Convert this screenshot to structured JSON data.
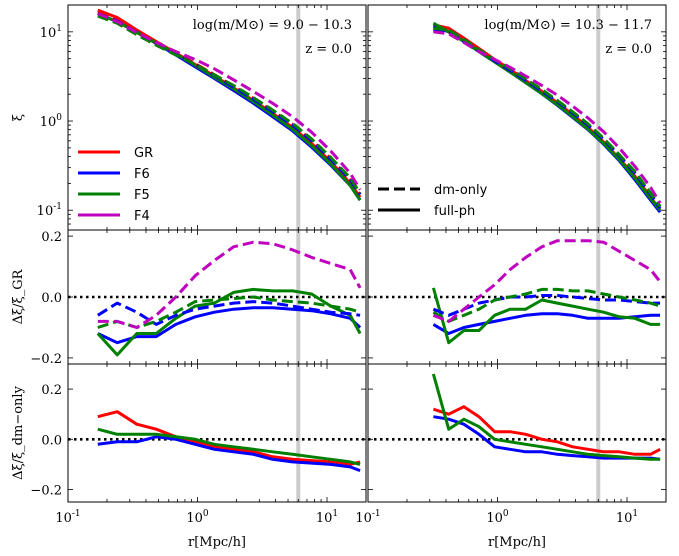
{
  "chart_data": {
    "type": "line",
    "x_unit_label": "r[Mpc/h]",
    "x_ticks": [
      {
        "v": 0.1,
        "label": "10^-1"
      },
      {
        "v": 1,
        "label": "10^0"
      },
      {
        "v": 10,
        "label": "10^1"
      }
    ],
    "xlim": [
      0.1,
      20
    ],
    "x_scale": "log",
    "vline_x": 6.0,
    "colors": {
      "GR": "#ff0000",
      "F6": "#0000ff",
      "F5": "#008000",
      "F4": "#bf00bf",
      "vline": "#cccccc",
      "zero": "#000000"
    },
    "legend_models": [
      "GR",
      "F6",
      "F5",
      "F4"
    ],
    "legend_styles": [
      {
        "label": "dm-only",
        "dash": true
      },
      {
        "label": "full-ph",
        "dash": false
      }
    ],
    "rows": [
      {
        "ylabel": "ξ",
        "y_scale": "log",
        "ylim": [
          0.06,
          20
        ],
        "y_ticks": [
          {
            "v": 0.1,
            "label": "10^-1"
          },
          {
            "v": 1,
            "label": "10^0"
          },
          {
            "v": 10,
            "label": "10^1"
          }
        ]
      },
      {
        "ylabel": "Δξ/ξ_GR",
        "y_scale": "linear",
        "ylim": [
          -0.22,
          0.22
        ],
        "y_ticks": [
          {
            "v": -0.2,
            "label": "−0.2"
          },
          {
            "v": 0.0,
            "label": "0.0"
          },
          {
            "v": 0.2,
            "label": "0.2"
          }
        ],
        "zero_line": true
      },
      {
        "ylabel": "Δξ/ξ_dm−only",
        "y_scale": "linear",
        "ylim": [
          -0.25,
          0.3
        ],
        "y_ticks": [
          {
            "v": -0.2,
            "label": "−0.2"
          },
          {
            "v": 0.0,
            "label": "0.0"
          },
          {
            "v": 0.2,
            "label": "0.2"
          }
        ],
        "zero_line": true
      }
    ],
    "columns": [
      {
        "annotation_mass": "log(m/M⊙) = 9.0 − 10.3",
        "annotation_z": "z = 0.0",
        "x": [
          0.17,
          0.24,
          0.34,
          0.48,
          0.68,
          0.96,
          1.35,
          1.9,
          2.7,
          3.8,
          5.4,
          7.6,
          10.7,
          15.1,
          18
        ],
        "panels": [
          [
            {
              "model": "GR",
              "dash": false,
              "y": [
                17.5,
                14.5,
                10.5,
                7.8,
                5.8,
                4.3,
                3.2,
                2.35,
                1.7,
                1.22,
                0.85,
                0.56,
                0.35,
                0.2,
                0.14
              ]
            },
            {
              "model": "F6",
              "dash": false,
              "y": [
                16,
                13,
                9.9,
                7.4,
                5.5,
                4.05,
                3.0,
                2.2,
                1.58,
                1.12,
                0.78,
                0.51,
                0.32,
                0.19,
                0.13
              ]
            },
            {
              "model": "F5",
              "dash": false,
              "y": [
                16,
                13,
                9.8,
                7.5,
                5.7,
                4.2,
                3.1,
                2.3,
                1.65,
                1.17,
                0.81,
                0.53,
                0.33,
                0.19,
                0.13
              ]
            },
            {
              "model": "GR",
              "dash": true,
              "y": [
                16.5,
                13.5,
                10,
                7.6,
                5.8,
                4.4,
                3.3,
                2.45,
                1.8,
                1.3,
                0.92,
                0.61,
                0.38,
                0.22,
                0.15
              ]
            },
            {
              "model": "F6",
              "dash": true,
              "y": [
                16,
                13.2,
                9.8,
                7.4,
                5.6,
                4.3,
                3.25,
                2.4,
                1.76,
                1.27,
                0.9,
                0.6,
                0.37,
                0.22,
                0.15
              ]
            },
            {
              "model": "F5",
              "dash": true,
              "y": [
                15,
                12.5,
                9.3,
                7.1,
                5.5,
                4.3,
                3.3,
                2.5,
                1.83,
                1.33,
                0.94,
                0.63,
                0.39,
                0.23,
                0.155
              ]
            },
            {
              "model": "F4",
              "dash": true,
              "y": [
                16,
                13,
                9.8,
                7.6,
                6.0,
                4.9,
                3.85,
                2.9,
                2.15,
                1.58,
                1.12,
                0.75,
                0.46,
                0.26,
                0.17
              ]
            }
          ],
          [
            {
              "model": "F6",
              "dash": false,
              "y": [
                -0.12,
                -0.15,
                -0.13,
                -0.13,
                -0.09,
                -0.065,
                -0.05,
                -0.04,
                -0.035,
                -0.035,
                -0.04,
                -0.045,
                -0.055,
                -0.07,
                -0.1
              ]
            },
            {
              "model": "F5",
              "dash": false,
              "y": [
                -0.12,
                -0.19,
                -0.12,
                -0.12,
                -0.07,
                -0.03,
                -0.02,
                0.015,
                0.025,
                0.02,
                0.02,
                0.01,
                -0.03,
                -0.06,
                -0.12
              ]
            },
            {
              "model": "F6",
              "dash": true,
              "y": [
                -0.06,
                -0.02,
                -0.05,
                -0.09,
                -0.06,
                -0.04,
                -0.03,
                -0.02,
                -0.015,
                -0.02,
                -0.03,
                -0.04,
                -0.05,
                -0.055,
                -0.06
              ]
            },
            {
              "model": "F5",
              "dash": true,
              "y": [
                -0.1,
                -0.08,
                -0.1,
                -0.08,
                -0.05,
                -0.015,
                -0.01,
                -0.005,
                0.0,
                -0.01,
                -0.015,
                -0.02,
                -0.03,
                -0.04,
                -0.05
              ]
            },
            {
              "model": "F4",
              "dash": true,
              "y": [
                -0.08,
                -0.08,
                -0.1,
                -0.06,
                0.0,
                0.07,
                0.12,
                0.165,
                0.18,
                0.175,
                0.155,
                0.13,
                0.11,
                0.09,
                0.03
              ]
            }
          ],
          [
            {
              "model": "GR",
              "dash": false,
              "y": [
                0.09,
                0.11,
                0.06,
                0.04,
                0.01,
                -0.01,
                -0.03,
                -0.04,
                -0.05,
                -0.07,
                -0.08,
                -0.085,
                -0.09,
                -0.1,
                -0.09
              ]
            },
            {
              "model": "F6",
              "dash": false,
              "y": [
                -0.02,
                -0.01,
                -0.01,
                0.01,
                0.0,
                -0.02,
                -0.04,
                -0.05,
                -0.06,
                -0.08,
                -0.09,
                -0.095,
                -0.1,
                -0.11,
                -0.125
              ]
            },
            {
              "model": "F5",
              "dash": false,
              "y": [
                0.04,
                0.02,
                0.02,
                0.02,
                0.01,
                0.0,
                -0.02,
                -0.03,
                -0.04,
                -0.05,
                -0.06,
                -0.07,
                -0.08,
                -0.09,
                -0.1
              ]
            }
          ]
        ]
      },
      {
        "annotation_mass": "log(m/M⊙) = 10.3 − 11.7",
        "annotation_z": "z = 0.0",
        "x": [
          0.32,
          0.42,
          0.55,
          0.72,
          0.95,
          1.25,
          1.65,
          2.2,
          2.9,
          3.8,
          5.0,
          6.6,
          8.7,
          11.5,
          15.2,
          18
        ],
        "panels": [
          [
            {
              "model": "GR",
              "dash": false,
              "y": [
                12,
                11,
                8.5,
                6.5,
                4.9,
                3.8,
                2.85,
                2.15,
                1.6,
                1.18,
                0.85,
                0.58,
                0.38,
                0.24,
                0.14,
                0.1
              ]
            },
            {
              "model": "F6",
              "dash": false,
              "y": [
                11.5,
                10,
                7.8,
                6.0,
                4.6,
                3.55,
                2.7,
                2.02,
                1.5,
                1.1,
                0.8,
                0.55,
                0.36,
                0.22,
                0.13,
                0.095
              ]
            },
            {
              "model": "F5",
              "dash": false,
              "y": [
                12.5,
                10,
                7.8,
                6.0,
                4.6,
                3.55,
                2.7,
                2.03,
                1.52,
                1.12,
                0.81,
                0.56,
                0.37,
                0.23,
                0.135,
                0.1
              ]
            },
            {
              "model": "GR",
              "dash": true,
              "y": [
                11,
                10.3,
                8.0,
                6.2,
                4.8,
                3.75,
                2.9,
                2.2,
                1.67,
                1.25,
                0.91,
                0.63,
                0.42,
                0.26,
                0.155,
                0.11
              ]
            },
            {
              "model": "F6",
              "dash": true,
              "y": [
                10.5,
                10,
                7.8,
                6.1,
                4.75,
                3.7,
                2.85,
                2.17,
                1.65,
                1.23,
                0.9,
                0.62,
                0.41,
                0.26,
                0.15,
                0.105
              ]
            },
            {
              "model": "F5",
              "dash": true,
              "y": [
                11,
                10.5,
                8.2,
                6.3,
                4.9,
                3.85,
                2.95,
                2.25,
                1.7,
                1.27,
                0.93,
                0.64,
                0.42,
                0.27,
                0.155,
                0.11
              ]
            },
            {
              "model": "F4",
              "dash": true,
              "y": [
                10,
                9.5,
                7.6,
                6.0,
                4.9,
                4.0,
                3.2,
                2.5,
                1.95,
                1.47,
                1.08,
                0.76,
                0.5,
                0.31,
                0.18,
                0.12
              ]
            }
          ],
          [
            {
              "model": "F6",
              "dash": false,
              "y": [
                -0.09,
                -0.12,
                -0.1,
                -0.09,
                -0.08,
                -0.07,
                -0.06,
                -0.055,
                -0.055,
                -0.06,
                -0.07,
                -0.07,
                -0.07,
                -0.065,
                -0.06,
                -0.06
              ]
            },
            {
              "model": "F5",
              "dash": false,
              "y": [
                0.03,
                -0.15,
                -0.11,
                -0.11,
                -0.06,
                -0.04,
                -0.04,
                -0.01,
                -0.02,
                -0.03,
                -0.04,
                -0.05,
                -0.065,
                -0.07,
                -0.09,
                -0.09
              ]
            },
            {
              "model": "F6",
              "dash": true,
              "y": [
                -0.04,
                -0.06,
                -0.04,
                -0.02,
                -0.01,
                0.0,
                0.0,
                0.005,
                0.005,
                0.0,
                -0.005,
                -0.01,
                -0.01,
                -0.015,
                -0.02,
                -0.02
              ]
            },
            {
              "model": "F5",
              "dash": true,
              "y": [
                -0.05,
                -0.08,
                -0.06,
                -0.04,
                -0.01,
                0.0,
                0.01,
                0.025,
                0.025,
                0.02,
                0.02,
                0.01,
                0.0,
                -0.01,
                -0.02,
                -0.03
              ]
            },
            {
              "model": "F4",
              "dash": true,
              "y": [
                -0.06,
                -0.08,
                -0.04,
                0.0,
                0.04,
                0.09,
                0.13,
                0.165,
                0.185,
                0.185,
                0.185,
                0.18,
                0.15,
                0.12,
                0.09,
                0.05
              ]
            }
          ],
          [
            {
              "model": "GR",
              "dash": false,
              "y": [
                0.12,
                0.1,
                0.13,
                0.09,
                0.03,
                0.03,
                0.02,
                0.0,
                -0.01,
                -0.03,
                -0.04,
                -0.05,
                -0.05,
                -0.06,
                -0.06,
                -0.04
              ]
            },
            {
              "model": "F6",
              "dash": false,
              "y": [
                0.09,
                0.08,
                0.06,
                0.02,
                -0.03,
                -0.04,
                -0.05,
                -0.05,
                -0.06,
                -0.065,
                -0.07,
                -0.075,
                -0.075,
                -0.075,
                -0.075,
                -0.08
              ]
            },
            {
              "model": "F5",
              "dash": false,
              "y": [
                0.26,
                0.04,
                0.08,
                0.05,
                0.0,
                -0.01,
                -0.02,
                -0.03,
                -0.04,
                -0.05,
                -0.06,
                -0.065,
                -0.07,
                -0.075,
                -0.08,
                -0.08
              ]
            }
          ]
        ]
      }
    ]
  }
}
